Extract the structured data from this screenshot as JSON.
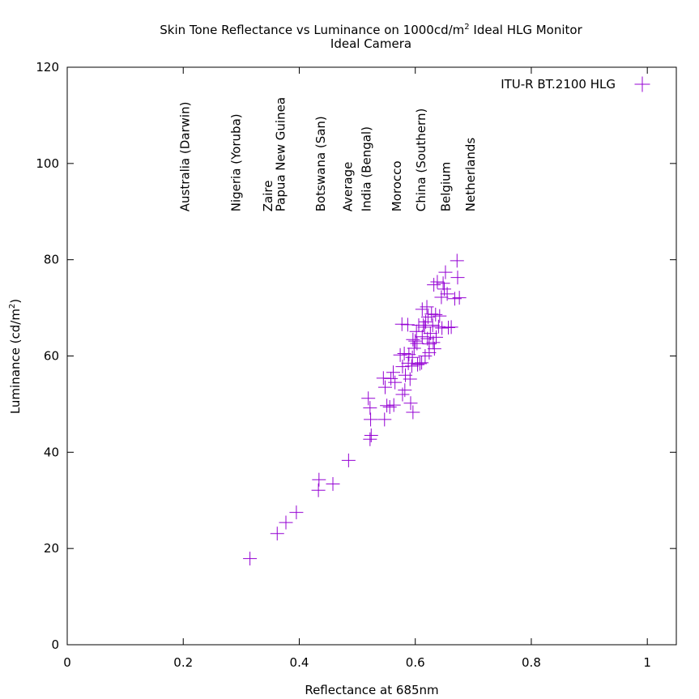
{
  "chart_data": {
    "type": "scatter",
    "title": "Skin Tone Reflectance vs Luminance on 1000cd/m",
    "title_sup": "2",
    "title_tail": " Ideal HLG Monitor",
    "subtitle": "Ideal Camera",
    "xlabel": "Reflectance at 685nm",
    "ylabel": "Luminance (cd/m",
    "ylabel_sup": "2",
    "ylabel_tail": ")",
    "xlim": [
      0,
      1.05
    ],
    "ylim": [
      0,
      120
    ],
    "xticks": [
      0,
      0.2,
      0.4,
      0.6,
      0.8,
      1
    ],
    "xtick_labels": [
      "0",
      "0.2",
      "0.4",
      "0.6",
      "0.8",
      "1"
    ],
    "yticks": [
      0,
      20,
      40,
      60,
      80,
      100,
      120
    ],
    "ytick_labels": [
      "0",
      "20",
      "40",
      "60",
      "80",
      "100",
      "120"
    ],
    "grid": false,
    "legend_position": "top-right",
    "marker_color": "#9400d3",
    "series": [
      {
        "name": "ITU-R BT.2100 HLG",
        "points": [
          [
            0.315,
            17.9
          ],
          [
            0.362,
            23.1
          ],
          [
            0.377,
            25.4
          ],
          [
            0.395,
            27.5
          ],
          [
            0.433,
            32.1
          ],
          [
            0.434,
            34.3
          ],
          [
            0.458,
            33.4
          ],
          [
            0.485,
            38.3
          ],
          [
            0.522,
            42.7
          ],
          [
            0.524,
            43.5
          ],
          [
            0.523,
            46.8
          ],
          [
            0.522,
            49.2
          ],
          [
            0.519,
            51.2
          ],
          [
            0.547,
            46.8
          ],
          [
            0.551,
            49.7
          ],
          [
            0.556,
            49.4
          ],
          [
            0.563,
            49.8
          ],
          [
            0.548,
            53.5
          ],
          [
            0.545,
            55.4
          ],
          [
            0.558,
            55.3
          ],
          [
            0.565,
            54.5
          ],
          [
            0.562,
            56.6
          ],
          [
            0.578,
            52.0
          ],
          [
            0.582,
            52.9
          ],
          [
            0.578,
            57.8
          ],
          [
            0.574,
            60.2
          ],
          [
            0.581,
            60.5
          ],
          [
            0.577,
            66.6
          ],
          [
            0.587,
            66.5
          ],
          [
            0.583,
            56.0
          ],
          [
            0.588,
            58.5
          ],
          [
            0.592,
            50.2
          ],
          [
            0.596,
            48.3
          ],
          [
            0.591,
            55.2
          ],
          [
            0.594,
            57.9
          ],
          [
            0.595,
            59.7
          ],
          [
            0.598,
            61.6
          ],
          [
            0.596,
            63.4
          ],
          [
            0.603,
            62.6
          ],
          [
            0.602,
            65.1
          ],
          [
            0.604,
            58.2
          ],
          [
            0.608,
            58.4
          ],
          [
            0.611,
            58.6
          ],
          [
            0.612,
            64.0
          ],
          [
            0.614,
            66.4
          ],
          [
            0.612,
            69.7
          ],
          [
            0.616,
            66.0
          ],
          [
            0.618,
            67.1
          ],
          [
            0.62,
            70.2
          ],
          [
            0.622,
            68.1
          ],
          [
            0.621,
            63.6
          ],
          [
            0.624,
            60.7
          ],
          [
            0.626,
            64.7
          ],
          [
            0.628,
            68.7
          ],
          [
            0.63,
            66.4
          ],
          [
            0.631,
            62.8
          ],
          [
            0.633,
            61.5
          ],
          [
            0.636,
            63.9
          ],
          [
            0.635,
            68.6
          ],
          [
            0.632,
            74.8
          ],
          [
            0.638,
            75.4
          ],
          [
            0.64,
            66.1
          ],
          [
            0.642,
            68.3
          ],
          [
            0.646,
            65.8
          ],
          [
            0.645,
            72.2
          ],
          [
            0.648,
            75.1
          ],
          [
            0.65,
            73.9
          ],
          [
            0.652,
            77.4
          ],
          [
            0.655,
            72.9
          ],
          [
            0.657,
            65.9
          ],
          [
            0.662,
            66.0
          ],
          [
            0.668,
            71.9
          ],
          [
            0.672,
            79.8
          ],
          [
            0.673,
            76.3
          ],
          [
            0.676,
            72.1
          ],
          [
            0.624,
            62.5
          ],
          [
            0.617,
            60.0
          ],
          [
            0.606,
            66.4
          ],
          [
            0.6,
            63.1
          ],
          [
            0.589,
            60.3
          ]
        ]
      }
    ],
    "annotations": [
      {
        "text": "Australia (Darwin)",
        "x": 0.21,
        "y": 90
      },
      {
        "text": "Nigeria (Yoruba)",
        "x": 0.298,
        "y": 90
      },
      {
        "text": "Zaire",
        "x": 0.353,
        "y": 90
      },
      {
        "text": "Papua New Guinea",
        "x": 0.375,
        "y": 90
      },
      {
        "text": "Botswana (San)",
        "x": 0.444,
        "y": 90
      },
      {
        "text": "Average",
        "x": 0.491,
        "y": 90
      },
      {
        "text": "India (Bengal)",
        "x": 0.523,
        "y": 90
      },
      {
        "text": "Morocco",
        "x": 0.575,
        "y": 90
      },
      {
        "text": "China (Southern)",
        "x": 0.617,
        "y": 90
      },
      {
        "text": "Belgium",
        "x": 0.66,
        "y": 90
      },
      {
        "text": "Netherlands",
        "x": 0.702,
        "y": 90
      }
    ]
  }
}
